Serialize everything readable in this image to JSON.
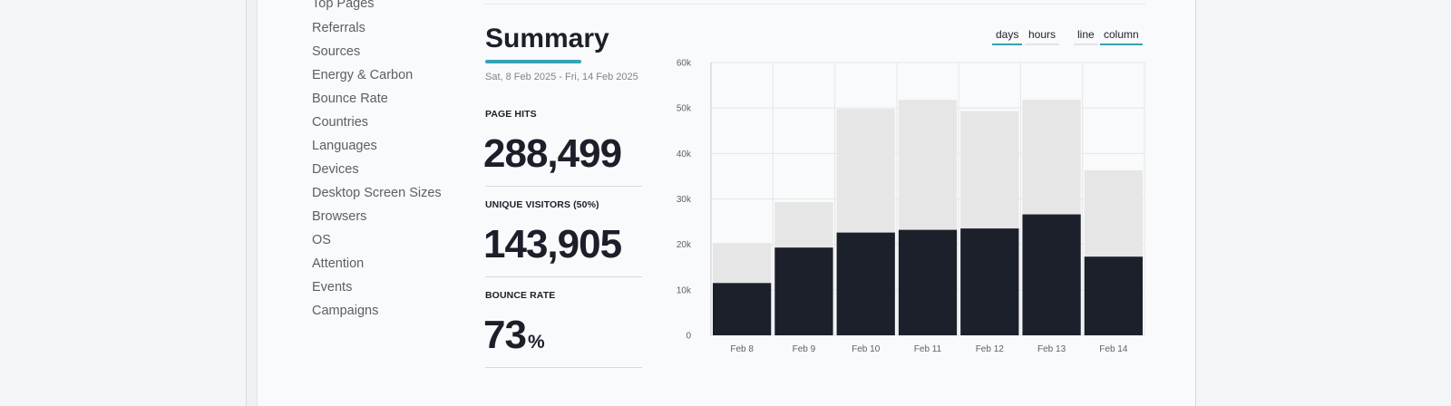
{
  "sidebar": {
    "items": [
      "Top Pages",
      "Referrals",
      "Sources",
      "Energy & Carbon",
      "Bounce Rate",
      "Countries",
      "Languages",
      "Devices",
      "Desktop Screen Sizes",
      "Browsers",
      "OS",
      "Attention",
      "Events",
      "Campaigns"
    ]
  },
  "summary": {
    "title": "Summary",
    "date_range": "Sat, 8 Feb 2025 - Fri, 14 Feb 2025",
    "metrics": {
      "page_hits": {
        "label": "PAGE HITS",
        "value": "288,499"
      },
      "unique_visitors": {
        "label": "UNIQUE VISITORS (50%)",
        "value": "143,905"
      },
      "bounce_rate": {
        "label": "BOUNCE RATE",
        "value": "73",
        "unit": "%"
      }
    }
  },
  "toggles": {
    "days": "days",
    "hours": "hours",
    "line": "line",
    "column": "column",
    "active_range": "days",
    "active_type": "column"
  },
  "colors": {
    "accent": "#35a3b3",
    "bar_unique": "#1c202b",
    "bar_hits": "#e6e6e6"
  },
  "chart_data": {
    "type": "bar",
    "categories": [
      "Feb 8",
      "Feb 9",
      "Feb 10",
      "Feb 11",
      "Feb 12",
      "Feb 13",
      "Feb 14"
    ],
    "series": [
      {
        "values": [
          20300,
          29300,
          49800,
          51800,
          49300,
          51800,
          36300
        ]
      },
      {
        "values": [
          11500,
          19300,
          22600,
          23200,
          23500,
          26600,
          17300
        ]
      }
    ],
    "yticks": [
      "0",
      "10k",
      "20k",
      "30k",
      "40k",
      "50k",
      "60k"
    ],
    "ylim": [
      0,
      60000
    ],
    "grid": true,
    "stacking": "overlay"
  }
}
